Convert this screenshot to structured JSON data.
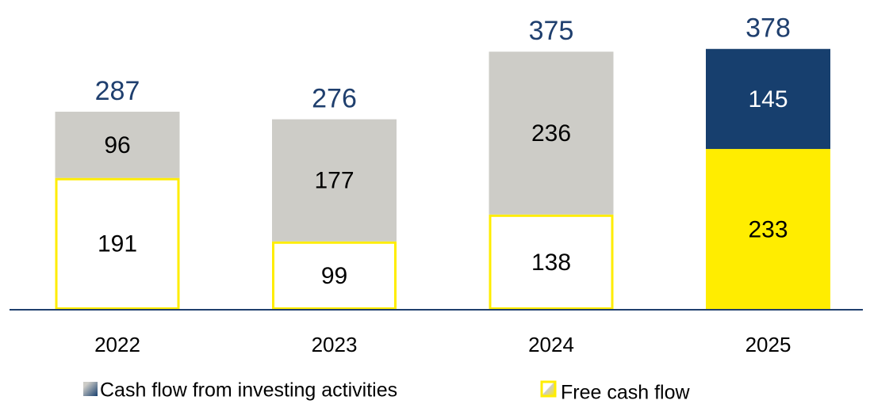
{
  "chart_data": {
    "type": "stacked_bar",
    "categories": [
      "2022",
      "2023",
      "2024",
      "2025"
    ],
    "series": [
      {
        "name": "Free cash flow",
        "values": [
          191,
          99,
          138,
          233
        ],
        "border_color": "#ffed00",
        "colors": [
          "#ffffff",
          "#ffffff",
          "#ffffff",
          "#ffed00"
        ]
      },
      {
        "name": "Cash flow from investing activities",
        "values": [
          96,
          177,
          236,
          145
        ],
        "colors": [
          "#cdccc7",
          "#cdccc7",
          "#cdccc7",
          "#173f6e"
        ]
      }
    ],
    "totals": [
      287,
      276,
      375,
      378
    ],
    "total_color": "#1f3f6e",
    "axis_color": "#1f3f6e"
  }
}
